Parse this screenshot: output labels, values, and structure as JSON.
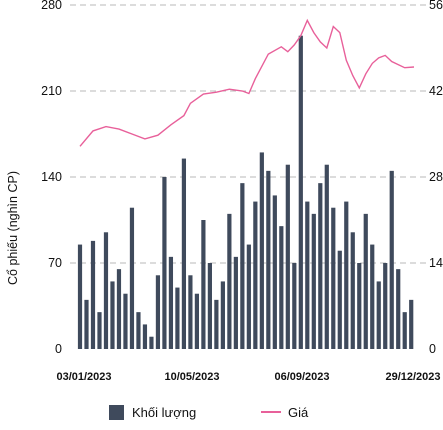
{
  "chart_data": {
    "type": "bar+line",
    "ylabel_left": "Cổ phiếu (nghìn CP)",
    "ylim_left": [
      0,
      280
    ],
    "yticks_left": [
      "0",
      "70",
      "140",
      "210",
      "280"
    ],
    "ylim_right": [
      0,
      56
    ],
    "yticks_right": [
      "0",
      "14",
      "28",
      "42",
      "56"
    ],
    "yticks_right_visible": [
      "0",
      "14",
      "28",
      "42",
      "56"
    ],
    "x_start": "2023-01-03",
    "x_end": "2023-12-29",
    "xticks": [
      "03/01/2023",
      "10/05/2023",
      "06/09/2023",
      "29/12/2023"
    ],
    "grid": "horizontal-dashed",
    "legend_position": "bottom",
    "series": [
      {
        "name": "Khối lượng",
        "kind": "bar",
        "axis": "left",
        "color": "#3f4a5c",
        "points": [
          [
            "2023-01-03",
            85
          ],
          [
            "2023-01-10",
            40
          ],
          [
            "2023-01-17",
            88
          ],
          [
            "2023-01-24",
            30
          ],
          [
            "2023-01-31",
            95
          ],
          [
            "2023-02-07",
            55
          ],
          [
            "2023-02-14",
            65
          ],
          [
            "2023-02-21",
            45
          ],
          [
            "2023-02-28",
            115
          ],
          [
            "2023-03-07",
            30
          ],
          [
            "2023-03-14",
            20
          ],
          [
            "2023-03-21",
            10
          ],
          [
            "2023-03-28",
            60
          ],
          [
            "2023-04-04",
            140
          ],
          [
            "2023-04-11",
            75
          ],
          [
            "2023-04-18",
            50
          ],
          [
            "2023-04-25",
            155
          ],
          [
            "2023-05-02",
            60
          ],
          [
            "2023-05-09",
            45
          ],
          [
            "2023-05-16",
            105
          ],
          [
            "2023-05-23",
            70
          ],
          [
            "2023-05-30",
            40
          ],
          [
            "2023-06-06",
            55
          ],
          [
            "2023-06-13",
            110
          ],
          [
            "2023-06-20",
            75
          ],
          [
            "2023-06-27",
            135
          ],
          [
            "2023-07-04",
            85
          ],
          [
            "2023-07-11",
            120
          ],
          [
            "2023-07-18",
            160
          ],
          [
            "2023-07-25",
            145
          ],
          [
            "2023-08-01",
            125
          ],
          [
            "2023-08-08",
            100
          ],
          [
            "2023-08-15",
            150
          ],
          [
            "2023-08-22",
            70
          ],
          [
            "2023-08-29",
            255
          ],
          [
            "2023-09-05",
            120
          ],
          [
            "2023-09-12",
            110
          ],
          [
            "2023-09-19",
            135
          ],
          [
            "2023-09-26",
            150
          ],
          [
            "2023-10-03",
            115
          ],
          [
            "2023-10-10",
            80
          ],
          [
            "2023-10-17",
            120
          ],
          [
            "2023-10-24",
            95
          ],
          [
            "2023-10-31",
            70
          ],
          [
            "2023-11-07",
            110
          ],
          [
            "2023-11-14",
            85
          ],
          [
            "2023-11-21",
            55
          ],
          [
            "2023-11-28",
            70
          ],
          [
            "2023-12-05",
            145
          ],
          [
            "2023-12-12",
            65
          ],
          [
            "2023-12-19",
            30
          ],
          [
            "2023-12-26",
            40
          ]
        ]
      },
      {
        "name": "Giá",
        "kind": "line",
        "axis": "right",
        "color": "#e8609a",
        "points": [
          [
            "2023-01-03",
            33.0
          ],
          [
            "2023-01-17",
            35.5
          ],
          [
            "2023-01-31",
            36.2
          ],
          [
            "2023-02-14",
            35.8
          ],
          [
            "2023-02-28",
            35.0
          ],
          [
            "2023-03-14",
            34.2
          ],
          [
            "2023-03-28",
            34.8
          ],
          [
            "2023-04-11",
            36.5
          ],
          [
            "2023-04-25",
            38.0
          ],
          [
            "2023-05-02",
            40.0
          ],
          [
            "2023-05-16",
            41.5
          ],
          [
            "2023-05-30",
            41.8
          ],
          [
            "2023-06-13",
            42.3
          ],
          [
            "2023-06-27",
            42.0
          ],
          [
            "2023-07-04",
            41.6
          ],
          [
            "2023-07-11",
            44.0
          ],
          [
            "2023-07-25",
            48.0
          ],
          [
            "2023-08-08",
            49.2
          ],
          [
            "2023-08-15",
            48.4
          ],
          [
            "2023-08-22",
            49.5
          ],
          [
            "2023-08-29",
            51.0
          ],
          [
            "2023-09-05",
            53.5
          ],
          [
            "2023-09-12",
            51.5
          ],
          [
            "2023-09-19",
            50.0
          ],
          [
            "2023-09-26",
            49.0
          ],
          [
            "2023-10-03",
            52.5
          ],
          [
            "2023-10-10",
            51.5
          ],
          [
            "2023-10-17",
            47.0
          ],
          [
            "2023-10-24",
            44.5
          ],
          [
            "2023-10-31",
            42.5
          ],
          [
            "2023-11-07",
            44.8
          ],
          [
            "2023-11-14",
            46.5
          ],
          [
            "2023-11-21",
            47.4
          ],
          [
            "2023-11-28",
            47.8
          ],
          [
            "2023-12-05",
            46.8
          ],
          [
            "2023-12-12",
            46.3
          ],
          [
            "2023-12-19",
            45.8
          ],
          [
            "2023-12-29",
            45.9
          ]
        ]
      }
    ]
  }
}
